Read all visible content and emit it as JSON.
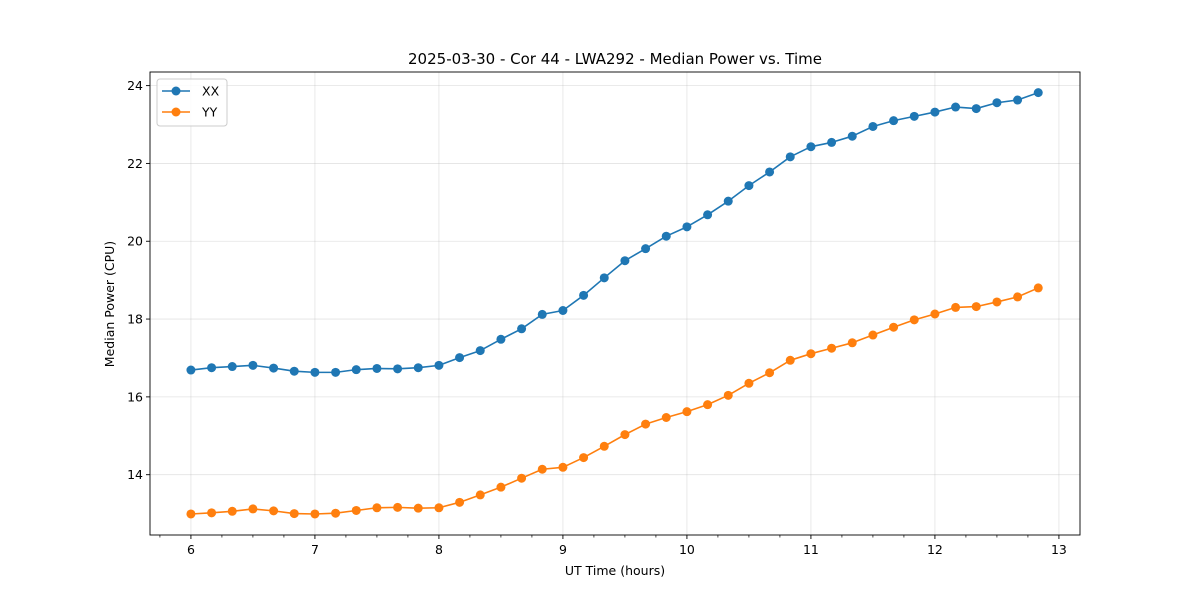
{
  "chart_data": {
    "type": "line",
    "title": "2025-03-30 - Cor 44 - LWA292 - Median Power vs. Time",
    "xlabel": "UT Time (hours)",
    "ylabel": "Median Power (CPU)",
    "xlim": [
      5.67,
      13.17
    ],
    "ylim": [
      12.45,
      24.35
    ],
    "xticks": [
      6,
      7,
      8,
      9,
      10,
      11,
      12,
      13
    ],
    "xtick_labels": [
      "6",
      "7",
      "8",
      "9",
      "10",
      "11",
      "12",
      "13"
    ],
    "yticks": [
      14,
      16,
      18,
      20,
      22,
      24
    ],
    "ytick_labels": [
      "14",
      "16",
      "18",
      "20",
      "22",
      "24"
    ],
    "grid": true,
    "legend_position": "top-left",
    "x": [
      6.0,
      6.1667,
      6.3333,
      6.5,
      6.6667,
      6.8333,
      7.0,
      7.1667,
      7.3333,
      7.5,
      7.6667,
      7.8333,
      8.0,
      8.1667,
      8.3333,
      8.5,
      8.6667,
      8.8333,
      9.0,
      9.1667,
      9.3333,
      9.5,
      9.6667,
      9.8333,
      10.0,
      10.1667,
      10.3333,
      10.5,
      10.6667,
      10.8333,
      11.0,
      11.1667,
      11.3333,
      11.5,
      11.6667,
      11.8333,
      12.0,
      12.1667,
      12.3333,
      12.5,
      12.6667,
      12.8333
    ],
    "series": [
      {
        "name": "XX",
        "color": "#1f77b4",
        "values": [
          16.69,
          16.75,
          16.78,
          16.81,
          16.74,
          16.66,
          16.63,
          16.63,
          16.7,
          16.73,
          16.72,
          16.75,
          16.81,
          17.01,
          17.19,
          17.48,
          17.75,
          18.12,
          18.22,
          18.61,
          19.06,
          19.5,
          19.81,
          20.13,
          20.37,
          20.68,
          21.03,
          21.43,
          21.78,
          22.17,
          22.43,
          22.54,
          22.7,
          22.95,
          23.1,
          23.21,
          23.32,
          23.45,
          23.41,
          23.56,
          23.63,
          23.82
        ]
      },
      {
        "name": "YY",
        "color": "#ff7f0e",
        "values": [
          12.99,
          13.02,
          13.06,
          13.12,
          13.07,
          13.0,
          12.99,
          13.01,
          13.08,
          13.15,
          13.16,
          13.14,
          13.15,
          13.29,
          13.48,
          13.68,
          13.91,
          14.14,
          14.19,
          14.44,
          14.73,
          15.03,
          15.3,
          15.47,
          15.62,
          15.8,
          16.04,
          16.35,
          16.62,
          16.94,
          17.11,
          17.25,
          17.39,
          17.59,
          17.79,
          17.98,
          18.13,
          18.3,
          18.32,
          18.44,
          18.57,
          18.8
        ]
      }
    ]
  }
}
